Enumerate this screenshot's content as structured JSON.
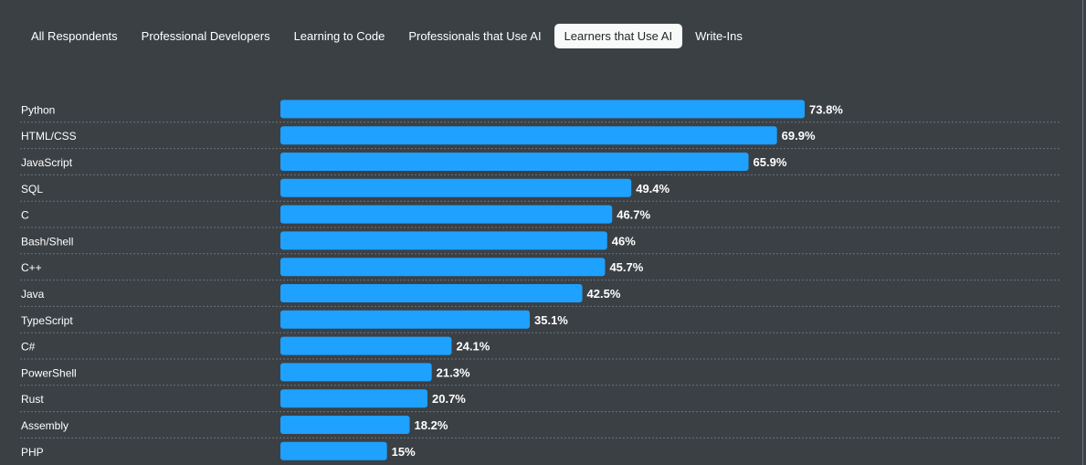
{
  "tabs": [
    {
      "label": "All Respondents",
      "active": false
    },
    {
      "label": "Professional Developers",
      "active": false
    },
    {
      "label": "Learning to Code",
      "active": false
    },
    {
      "label": "Professionals that Use AI",
      "active": false
    },
    {
      "label": "Learners that Use AI",
      "active": true
    },
    {
      "label": "Write-Ins",
      "active": false
    }
  ],
  "colors": {
    "background": "#3b4045",
    "bar": "#1ea1ff",
    "text": "#ffffff",
    "divider": "#6a737c",
    "active_tab_bg": "#f8f9f9",
    "active_tab_text": "#232629"
  },
  "chart_data": {
    "type": "bar",
    "orientation": "horizontal",
    "categories": [
      "Python",
      "HTML/CSS",
      "JavaScript",
      "SQL",
      "C",
      "Bash/Shell",
      "C++",
      "Java",
      "TypeScript",
      "C#",
      "PowerShell",
      "Rust",
      "Assembly",
      "PHP"
    ],
    "values": [
      73.8,
      69.9,
      65.9,
      49.4,
      46.7,
      46,
      45.7,
      42.5,
      35.1,
      24.1,
      21.3,
      20.7,
      18.2,
      15
    ],
    "value_labels": [
      "73.8%",
      "69.9%",
      "65.9%",
      "49.4%",
      "46.7%",
      "46%",
      "45.7%",
      "42.5%",
      "35.1%",
      "24.1%",
      "21.3%",
      "20.7%",
      "18.2%",
      "15%"
    ],
    "unit": "%",
    "grid": "dotted row separators",
    "legend": "none"
  }
}
